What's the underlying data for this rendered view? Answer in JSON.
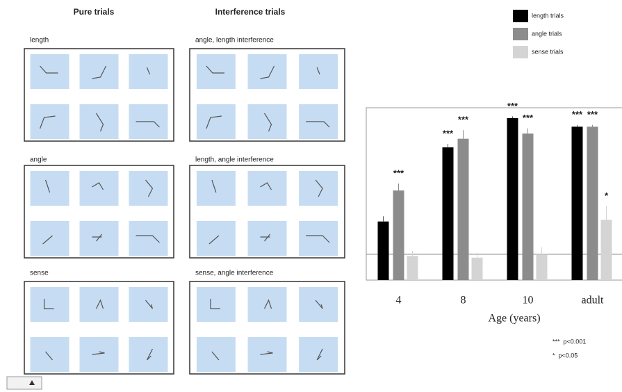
{
  "panels": {
    "headers": [
      "Pure trials",
      "Interference trials"
    ],
    "pure": [
      "length",
      "angle",
      "sense"
    ],
    "interference": [
      "angle, length interference",
      "length, angle interference",
      "sense, angle interference"
    ]
  },
  "chart_data": {
    "type": "bar",
    "categories": [
      "4",
      "8",
      "10",
      "adult"
    ],
    "x_label": "Age (years)",
    "ylim": [
      0,
      1
    ],
    "reference_line": 0.15,
    "legend": "top-right",
    "series": [
      {
        "name": "length trials",
        "color": "#000000",
        "values": [
          0.34,
          0.77,
          0.94,
          0.89
        ],
        "errors": [
          0.03,
          0.02,
          0.01,
          0.01
        ],
        "labels": [
          null,
          "***",
          "***",
          "***"
        ]
      },
      {
        "name": "angle trials",
        "color": "#8c8c8c",
        "values": [
          0.52,
          0.82,
          0.85,
          0.89
        ],
        "errors": [
          0.04,
          0.05,
          0.03,
          0.01
        ],
        "labels": [
          "***",
          "***",
          "***",
          "***"
        ]
      },
      {
        "name": "sense trials",
        "color": "#d4d4d4",
        "values": [
          0.14,
          0.13,
          0.15,
          0.35
        ],
        "errors": [
          0.03,
          0.03,
          0.04,
          0.08
        ],
        "labels": [
          null,
          null,
          null,
          "*"
        ]
      }
    ],
    "notes": [
      "***  p<0.001",
      "*  p<0.05"
    ]
  }
}
